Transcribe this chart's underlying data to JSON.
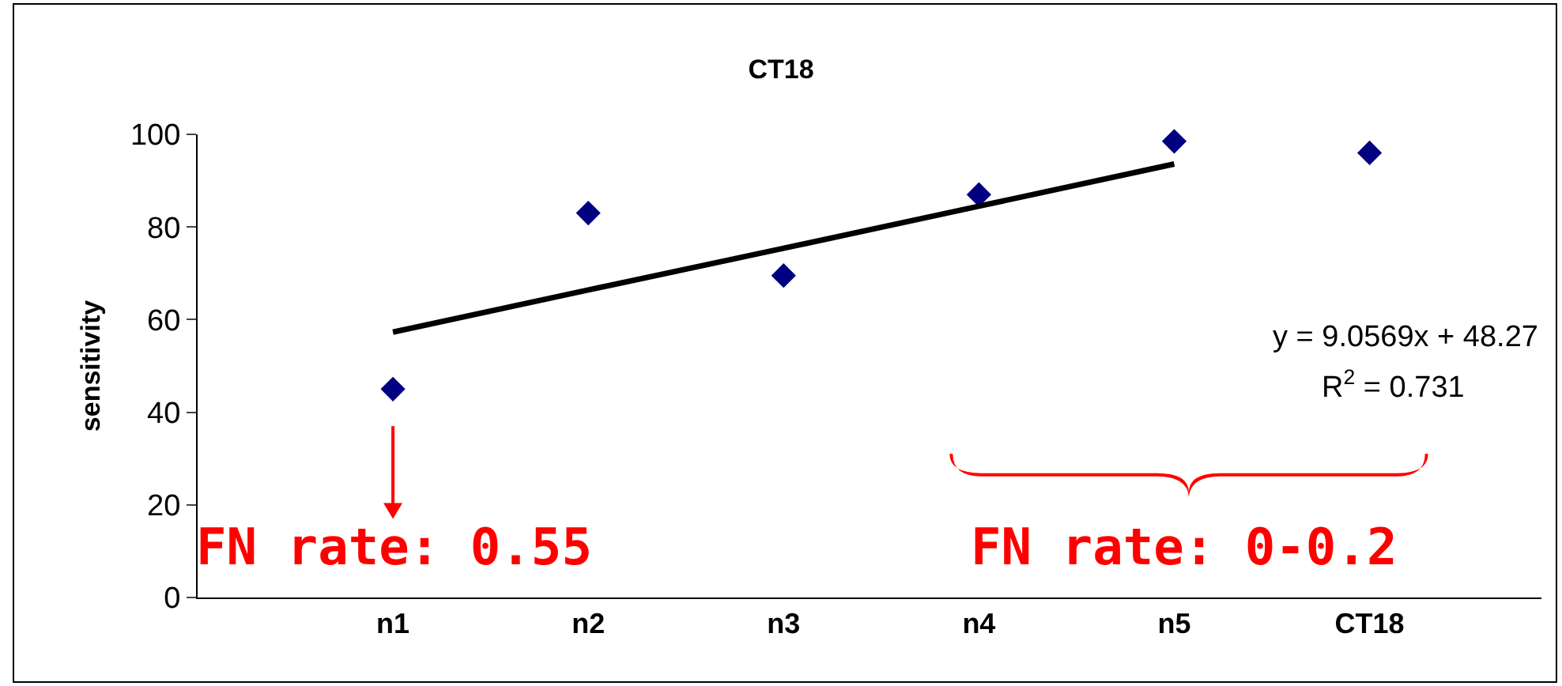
{
  "chart_data": {
    "type": "scatter",
    "title": "CT18",
    "ylabel": "sensitivity",
    "categories": [
      "n1",
      "n2",
      "n3",
      "n4",
      "n5",
      "CT18"
    ],
    "series": [
      {
        "color": "#000080",
        "values": [
          45,
          83,
          69.5,
          87,
          98.5,
          96
        ],
        "marker": "diamond"
      },
      {
        "type": "line",
        "color": "#000000",
        "x": [
          "n1",
          "n2",
          "n3",
          "n4",
          "n5"
        ],
        "values": [
          57.3,
          66.4,
          75.4,
          84.5,
          93.6
        ],
        "line_style": "solid"
      }
    ],
    "ylim": [
      0,
      100
    ],
    "yticks": [
      0,
      20,
      40,
      60,
      80,
      100
    ],
    "grid": false,
    "legend": false,
    "annotations": [
      "y = 9.0569x + 48.27",
      "R$^{2}$ = 0.731",
      "FN rate: 0.55",
      "FN rate: 0-0.2"
    ]
  }
}
